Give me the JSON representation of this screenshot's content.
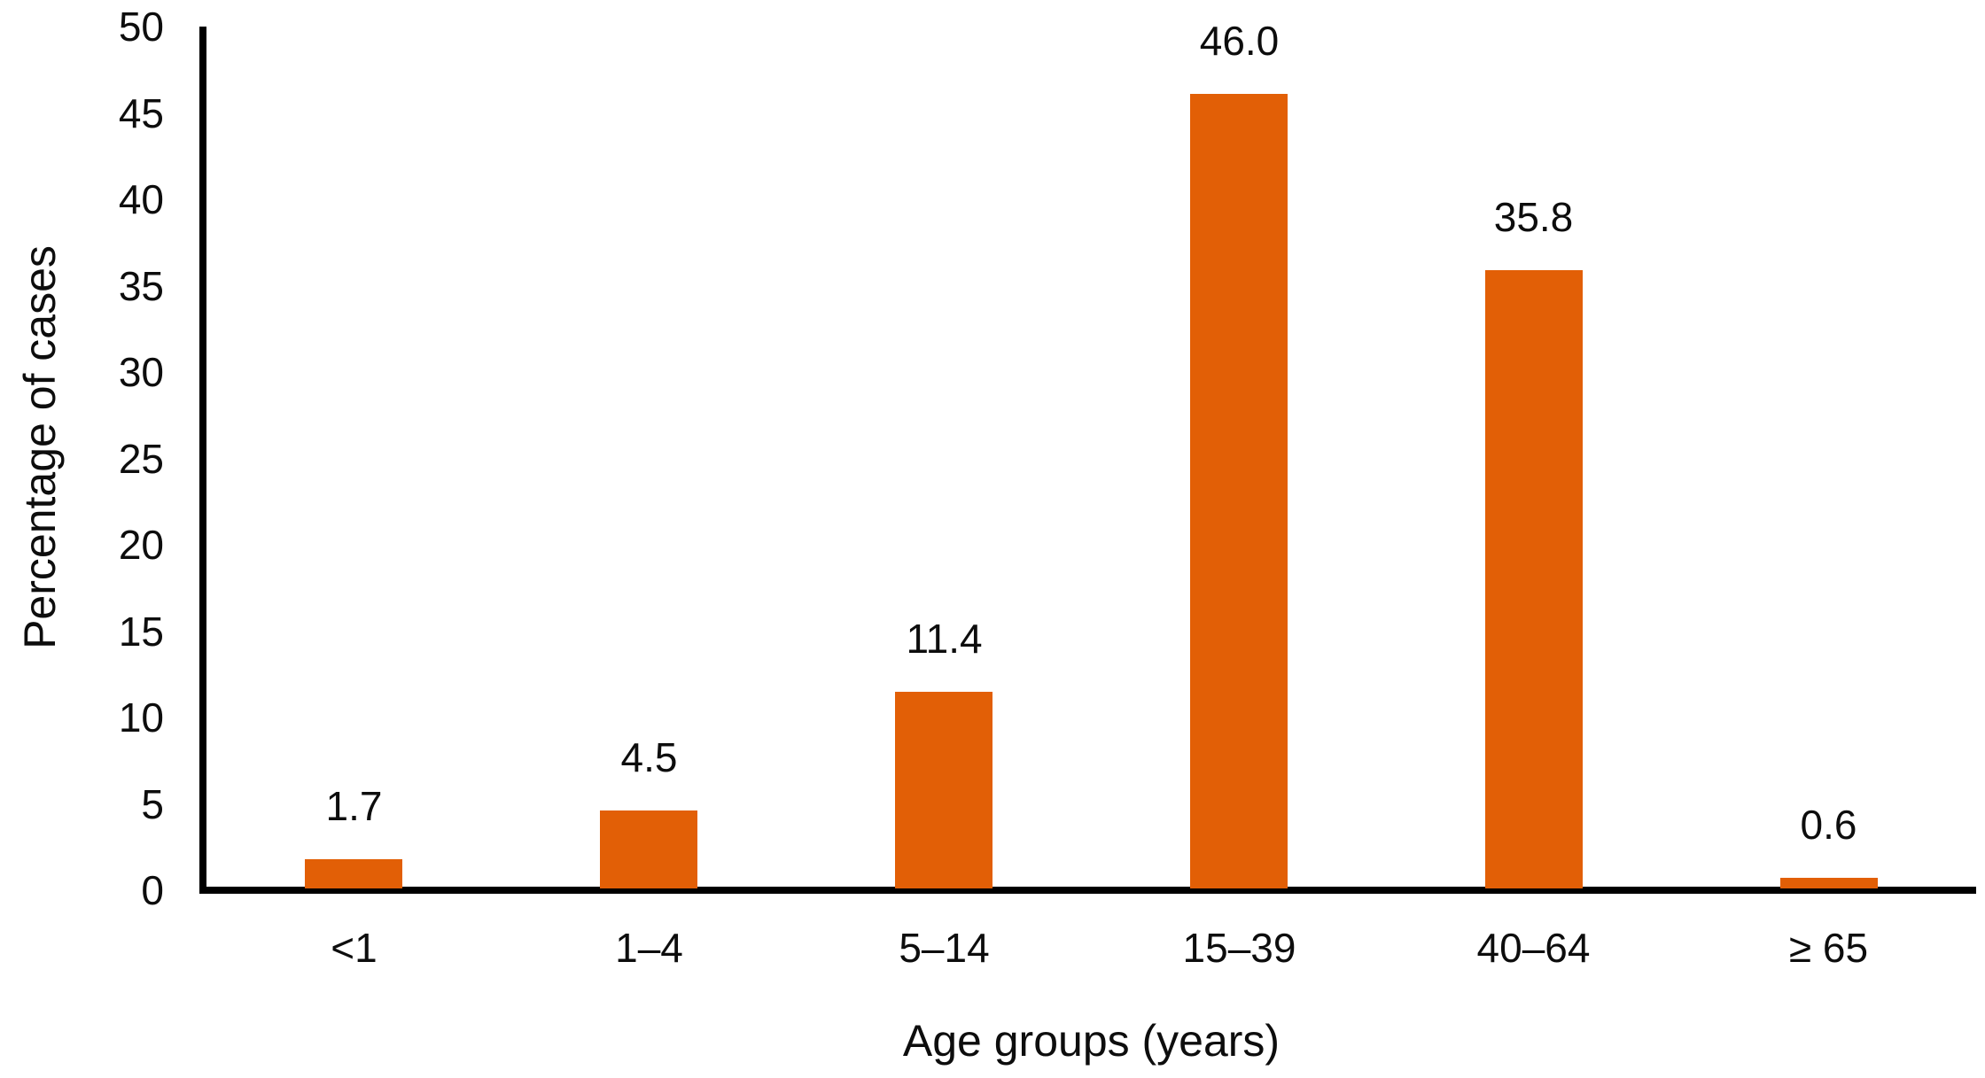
{
  "chart_data": {
    "type": "bar",
    "title": "",
    "categories": [
      "<1",
      "1–4",
      "5–14",
      "15–39",
      "40–64",
      "≥ 65"
    ],
    "values": [
      1.7,
      4.5,
      11.4,
      46.0,
      35.8,
      0.6
    ],
    "data_labels": [
      "1.7",
      "4.5",
      "11.4",
      "46.0",
      "35.8",
      "0.6"
    ],
    "xlabel": "Age groups (years)",
    "ylabel": "Percentage of cases",
    "ylim": [
      0,
      50
    ],
    "yticks": [
      0,
      5,
      10,
      15,
      20,
      25,
      30,
      35,
      40,
      45,
      50
    ],
    "grid": false,
    "legend_position": "none",
    "bar_color": "#E25F06",
    "axis_color": "#000000",
    "text_color": "#000000"
  }
}
